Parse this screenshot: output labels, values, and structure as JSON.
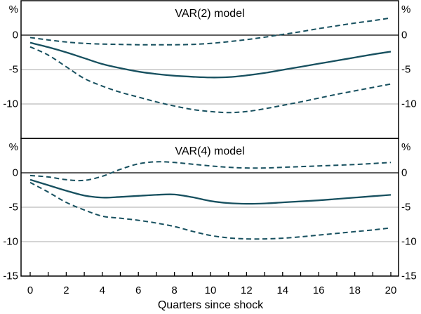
{
  "figure": {
    "unit_label": "%",
    "colors": {
      "line": "#17505f",
      "grid": "#a9a9a9",
      "axis": "#000000",
      "background": "#ffffff"
    }
  },
  "chart_data": [
    {
      "type": "line",
      "title": "VAR(2) model",
      "panel": "top",
      "ylim": [
        -15,
        5
      ],
      "grid": "horizontal",
      "gridlines": [
        -5,
        -10
      ],
      "zero_line": 0,
      "ytick_labels": [
        {
          "value": 0,
          "label": "0"
        },
        {
          "value": -5,
          "label": "-5"
        },
        {
          "value": -10,
          "label": "-10"
        }
      ],
      "unit_label_left": "%",
      "unit_label_right": "%",
      "x": [
        0,
        1,
        2,
        3,
        4,
        5,
        6,
        7,
        8,
        9,
        10,
        11,
        12,
        13,
        14,
        15,
        16,
        17,
        18,
        19,
        20
      ],
      "series": [
        {
          "name": "upper confidence band",
          "style": "dashed",
          "values": [
            -0.35,
            -0.7,
            -1.0,
            -1.2,
            -1.3,
            -1.35,
            -1.4,
            -1.4,
            -1.4,
            -1.35,
            -1.2,
            -0.95,
            -0.65,
            -0.3,
            0.1,
            0.5,
            0.95,
            1.35,
            1.75,
            2.1,
            2.5
          ]
        },
        {
          "name": "point estimate",
          "style": "solid",
          "values": [
            -1.1,
            -1.75,
            -2.5,
            -3.35,
            -4.2,
            -4.8,
            -5.3,
            -5.65,
            -5.9,
            -6.05,
            -6.15,
            -6.1,
            -5.85,
            -5.5,
            -5.05,
            -4.6,
            -4.15,
            -3.7,
            -3.25,
            -2.8,
            -2.4
          ]
        },
        {
          "name": "lower confidence band",
          "style": "dashed",
          "values": [
            -1.7,
            -2.9,
            -4.6,
            -6.3,
            -7.4,
            -8.3,
            -9.0,
            -9.7,
            -10.3,
            -10.8,
            -11.1,
            -11.25,
            -11.1,
            -10.7,
            -10.2,
            -9.7,
            -9.15,
            -8.6,
            -8.1,
            -7.6,
            -7.1
          ]
        }
      ]
    },
    {
      "type": "line",
      "title": "VAR(4) model",
      "panel": "bottom",
      "ylim": [
        -15,
        5
      ],
      "grid": "horizontal",
      "gridlines": [
        -5,
        -10
      ],
      "zero_line": 0,
      "ytick_labels": [
        {
          "value": 0,
          "label": "0"
        },
        {
          "value": -5,
          "label": "-5"
        },
        {
          "value": -10,
          "label": "-10"
        },
        {
          "value": -15,
          "label": "-15"
        }
      ],
      "unit_label_left": "%",
      "unit_label_right": "%",
      "x": [
        0,
        1,
        2,
        3,
        4,
        5,
        6,
        7,
        8,
        9,
        10,
        11,
        12,
        13,
        14,
        15,
        16,
        17,
        18,
        19,
        20
      ],
      "series": [
        {
          "name": "upper confidence band",
          "style": "dashed",
          "values": [
            -0.4,
            -0.6,
            -1.0,
            -1.1,
            -0.5,
            0.5,
            1.3,
            1.6,
            1.5,
            1.25,
            1.0,
            0.8,
            0.7,
            0.7,
            0.8,
            0.9,
            1.0,
            1.1,
            1.2,
            1.35,
            1.5
          ]
        },
        {
          "name": "point estimate",
          "style": "solid",
          "values": [
            -1.0,
            -1.8,
            -2.6,
            -3.3,
            -3.6,
            -3.5,
            -3.35,
            -3.2,
            -3.15,
            -3.55,
            -4.1,
            -4.4,
            -4.5,
            -4.45,
            -4.3,
            -4.15,
            -4.0,
            -3.8,
            -3.6,
            -3.4,
            -3.2
          ]
        },
        {
          "name": "lower confidence band",
          "style": "dashed",
          "values": [
            -1.4,
            -2.8,
            -4.3,
            -5.4,
            -6.3,
            -6.6,
            -6.9,
            -7.3,
            -7.8,
            -8.5,
            -9.1,
            -9.45,
            -9.6,
            -9.6,
            -9.5,
            -9.3,
            -9.05,
            -8.8,
            -8.55,
            -8.3,
            -8.0
          ]
        }
      ]
    }
  ],
  "x_axis": {
    "title": "Quarters since shock",
    "ticks": [
      0,
      1,
      2,
      3,
      4,
      5,
      6,
      7,
      8,
      9,
      10,
      11,
      12,
      13,
      14,
      15,
      16,
      17,
      18,
      19,
      20
    ],
    "labeled_ticks": [
      0,
      2,
      4,
      6,
      8,
      10,
      12,
      14,
      16,
      18,
      20
    ]
  }
}
